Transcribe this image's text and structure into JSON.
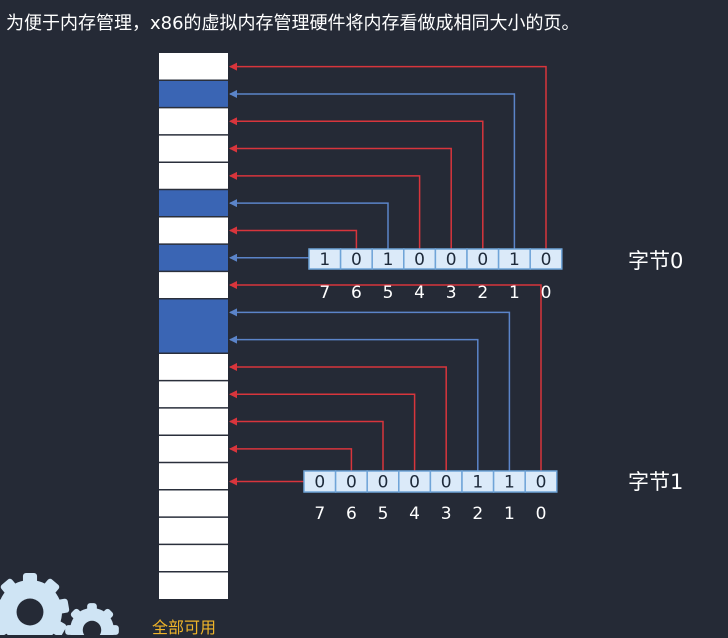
{
  "caption": "为便于内存管理，x86的虚拟内存管理硬件将内存看做成相同大小的页。",
  "footer_label": "全部可用",
  "colors": {
    "background": "#252a36",
    "used_page": "#3a65b4",
    "free_page": "#ffffff",
    "bit_box": "#dbeaf9",
    "bit_box_border": "#6fa4d8",
    "arrow_used": "#5b84c9",
    "arrow_free": "#d8353c",
    "label": "#ffffff",
    "footer": "#f0b429",
    "gear": "#cfe4f4"
  },
  "memory_pages": [
    false,
    true,
    false,
    false,
    false,
    true,
    false,
    true,
    false,
    true,
    true,
    false,
    false,
    false,
    false,
    false,
    false,
    false,
    false,
    false
  ],
  "bytes": [
    {
      "label": "字节0",
      "bits": [
        "1",
        "0",
        "1",
        "0",
        "0",
        "0",
        "1",
        "0"
      ],
      "bit_indices": [
        "7",
        "6",
        "5",
        "4",
        "3",
        "2",
        "1",
        "0"
      ]
    },
    {
      "label": "字节1",
      "bits": [
        "0",
        "0",
        "0",
        "0",
        "0",
        "1",
        "1",
        "0"
      ],
      "bit_indices": [
        "7",
        "6",
        "5",
        "4",
        "3",
        "2",
        "1",
        "0"
      ]
    }
  ]
}
